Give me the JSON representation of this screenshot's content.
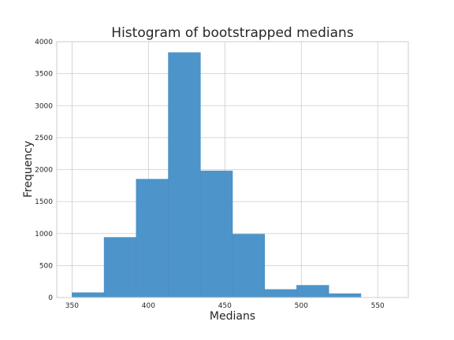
{
  "chart_data": {
    "type": "bar",
    "title": "Histogram of bootstrapped medians",
    "xlabel": "Medians",
    "ylabel": "Frequency",
    "xlim": [
      340,
      570
    ],
    "ylim": [
      0,
      4000
    ],
    "xticks": [
      350,
      400,
      450,
      500,
      550
    ],
    "yticks": [
      0,
      500,
      1000,
      1500,
      2000,
      2500,
      3000,
      3500,
      4000
    ],
    "grid": true,
    "bar_color": "#4c94c9",
    "bins": [
      {
        "x0": 350,
        "x1": 371,
        "value": 75
      },
      {
        "x0": 371,
        "x1": 392,
        "value": 940
      },
      {
        "x0": 392,
        "x1": 413,
        "value": 1850
      },
      {
        "x0": 413,
        "x1": 434,
        "value": 3830
      },
      {
        "x0": 434,
        "x1": 455,
        "value": 1980
      },
      {
        "x0": 455,
        "x1": 476,
        "value": 990
      },
      {
        "x0": 476,
        "x1": 497,
        "value": 125
      },
      {
        "x0": 497,
        "x1": 518,
        "value": 190
      },
      {
        "x0": 518,
        "x1": 539,
        "value": 60
      }
    ]
  }
}
